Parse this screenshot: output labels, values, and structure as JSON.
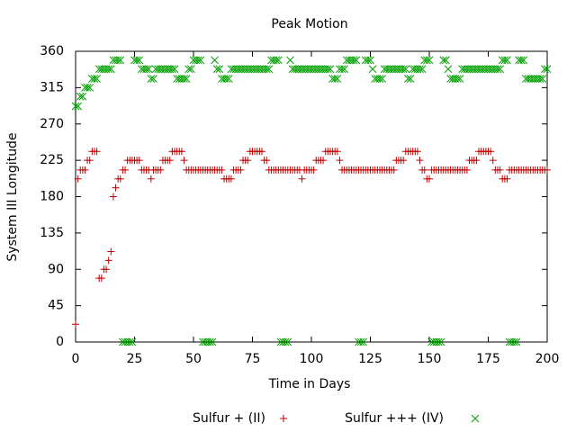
{
  "chart_data": {
    "type": "scatter",
    "title": "Peak Motion",
    "xlabel": "Time in Days",
    "ylabel": "System III Longitude",
    "xlim": [
      0,
      200
    ],
    "xticks": [
      0,
      25,
      50,
      75,
      100,
      125,
      150,
      175,
      200
    ],
    "ylim": [
      0,
      360
    ],
    "yticks": [
      0,
      45,
      90,
      135,
      180,
      225,
      270,
      315,
      360
    ],
    "legend": "bottom",
    "x": [
      0,
      1,
      2,
      3,
      4,
      5,
      6,
      7,
      8,
      9,
      10,
      11,
      12,
      13,
      14,
      15,
      16,
      17,
      18,
      19,
      20,
      21,
      22,
      23,
      24,
      25,
      26,
      27,
      28,
      29,
      30,
      31,
      32,
      33,
      34,
      35,
      36,
      37,
      38,
      39,
      40,
      41,
      42,
      43,
      44,
      45,
      46,
      47,
      48,
      49,
      50,
      51,
      52,
      53,
      54,
      55,
      56,
      57,
      58,
      59,
      60,
      61,
      62,
      63,
      64,
      65,
      66,
      67,
      68,
      69,
      70,
      71,
      72,
      73,
      74,
      75,
      76,
      77,
      78,
      79,
      80,
      81,
      82,
      83,
      84,
      85,
      86,
      87,
      88,
      89,
      90,
      91,
      92,
      93,
      94,
      95,
      96,
      97,
      98,
      99,
      100,
      101,
      102,
      103,
      104,
      105,
      106,
      107,
      108,
      109,
      110,
      111,
      112,
      113,
      114,
      115,
      116,
      117,
      118,
      119,
      120,
      121,
      122,
      123,
      124,
      125,
      126,
      127,
      128,
      129,
      130,
      131,
      132,
      133,
      134,
      135,
      136,
      137,
      138,
      139,
      140,
      141,
      142,
      143,
      144,
      145,
      146,
      147,
      148,
      149,
      150,
      151,
      152,
      153,
      154,
      155,
      156,
      157,
      158,
      159,
      160,
      161,
      162,
      163,
      164,
      165,
      166,
      167,
      168,
      169,
      170,
      171,
      172,
      173,
      174,
      175,
      176,
      177,
      178,
      179,
      180,
      181,
      182,
      183,
      184,
      185,
      186,
      187,
      188,
      189,
      190,
      191,
      192,
      193,
      194,
      195,
      196,
      197,
      198,
      199,
      200
    ],
    "series": [
      {
        "name": "Sulfur + (II)",
        "color": "#c00000",
        "marker": "plus",
        "values": [
          22,
          202,
          213,
          213,
          213,
          225,
          225,
          236,
          236,
          236,
          79,
          79,
          90,
          90,
          101,
          112,
          180,
          191,
          202,
          202,
          213,
          213,
          225,
          225,
          225,
          225,
          225,
          225,
          213,
          213,
          213,
          213,
          202,
          213,
          213,
          213,
          213,
          225,
          225,
          225,
          225,
          236,
          236,
          236,
          236,
          236,
          225,
          213,
          213,
          213,
          213,
          213,
          213,
          213,
          213,
          213,
          213,
          213,
          213,
          213,
          213,
          213,
          213,
          202,
          202,
          202,
          202,
          213,
          213,
          213,
          213,
          225,
          225,
          225,
          236,
          236,
          236,
          236,
          236,
          236,
          225,
          225,
          213,
          213,
          213,
          213,
          213,
          213,
          213,
          213,
          213,
          213,
          213,
          213,
          213,
          213,
          202,
          213,
          213,
          213,
          213,
          213,
          225,
          225,
          225,
          225,
          236,
          236,
          236,
          236,
          236,
          236,
          225,
          213,
          213,
          213,
          213,
          213,
          213,
          213,
          213,
          213,
          213,
          213,
          213,
          213,
          213,
          213,
          213,
          213,
          213,
          213,
          213,
          213,
          213,
          213,
          225,
          225,
          225,
          225,
          236,
          236,
          236,
          236,
          236,
          236,
          225,
          213,
          213,
          202,
          202,
          213,
          213,
          213,
          213,
          213,
          213,
          213,
          213,
          213,
          213,
          213,
          213,
          213,
          213,
          213,
          213,
          225,
          225,
          225,
          225,
          236,
          236,
          236,
          236,
          236,
          236,
          225,
          213,
          213,
          213,
          202,
          202,
          202,
          213,
          213,
          213,
          213,
          213,
          213,
          213,
          213,
          213,
          213,
          213,
          213,
          213,
          213,
          213,
          213,
          213
        ]
      },
      {
        "name": "Sulfur +++ (IV)",
        "color": "#00a000",
        "marker": "cross",
        "values": [
          292,
          292,
          304,
          304,
          315,
          315,
          315,
          326,
          326,
          326,
          338,
          338,
          338,
          338,
          338,
          338,
          349,
          349,
          349,
          349,
          0,
          0,
          0,
          0,
          0,
          349,
          349,
          349,
          338,
          338,
          338,
          338,
          326,
          326,
          338,
          338,
          338,
          338,
          338,
          338,
          338,
          338,
          338,
          326,
          326,
          326,
          326,
          326,
          338,
          338,
          349,
          349,
          349,
          349,
          0,
          0,
          0,
          0,
          0,
          349,
          338,
          338,
          326,
          326,
          326,
          326,
          338,
          338,
          338,
          338,
          338,
          338,
          338,
          338,
          338,
          338,
          338,
          338,
          338,
          338,
          338,
          338,
          338,
          349,
          349,
          349,
          349,
          0,
          0,
          0,
          0,
          349,
          338,
          338,
          338,
          338,
          338,
          338,
          338,
          338,
          338,
          338,
          338,
          338,
          338,
          338,
          338,
          338,
          338,
          326,
          326,
          326,
          338,
          338,
          338,
          349,
          349,
          349,
          349,
          349,
          0,
          0,
          0,
          349,
          349,
          349,
          338,
          326,
          326,
          326,
          326,
          338,
          338,
          338,
          338,
          338,
          338,
          338,
          338,
          338,
          338,
          326,
          326,
          338,
          338,
          338,
          338,
          338,
          349,
          349,
          349,
          0,
          0,
          0,
          0,
          0,
          349,
          349,
          338,
          326,
          326,
          326,
          326,
          326,
          338,
          338,
          338,
          338,
          338,
          338,
          338,
          338,
          338,
          338,
          338,
          338,
          338,
          338,
          338,
          338,
          338,
          349,
          349,
          349,
          0,
          0,
          0,
          0,
          349,
          349,
          349,
          326,
          326,
          326,
          326,
          326,
          326,
          326,
          326,
          338,
          338
        ]
      }
    ]
  }
}
